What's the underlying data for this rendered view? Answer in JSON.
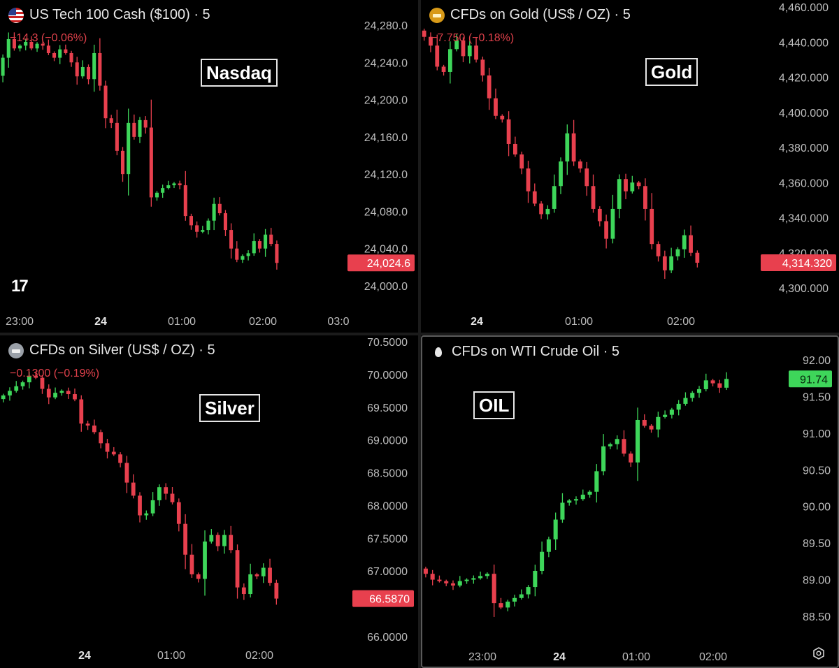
{
  "panels": {
    "nasdaq": {
      "title": "US Tech 100 Cash ($100) · 5",
      "change": "−14.3 (−0.06%)",
      "label": "Nasdaq",
      "icon": "us-flag-icon",
      "price_tag": "24,024.6",
      "yticks": [
        "24,280.0",
        "24,240.0",
        "24,200.0",
        "24,160.0",
        "24,120.0",
        "24,080.0",
        "24,040.0",
        "24,000.0"
      ],
      "xticks": [
        "23:00",
        "24",
        "01:00",
        "02:00",
        "03:0"
      ]
    },
    "gold": {
      "title": "CFDs on Gold (US$ / OZ) · 5",
      "change": "−7.750 (−0.18%)",
      "label": "Gold",
      "icon": "gold-bar-icon",
      "price_tag": "4,314.320",
      "yticks": [
        "4,460.000",
        "4,440.000",
        "4,420.000",
        "4,400.000",
        "4,380.000",
        "4,360.000",
        "4,340.000",
        "4,320.000",
        "4,300.000"
      ],
      "xticks": [
        "24",
        "01:00",
        "02:00"
      ]
    },
    "silver": {
      "title": "CFDs on Silver (US$ / OZ) · 5",
      "change": "−0.1300 (−0.19%)",
      "label": "Silver",
      "icon": "silver-bar-icon",
      "price_tag": "66.5870",
      "yticks": [
        "70.5000",
        "70.0000",
        "69.5000",
        "69.0000",
        "68.5000",
        "68.0000",
        "67.5000",
        "67.0000",
        "66.0000"
      ],
      "xticks": [
        "24",
        "01:00",
        "02:00"
      ]
    },
    "oil": {
      "title": "CFDs on WTI Crude Oil · 5",
      "label": "OIL",
      "icon": "oil-drop-icon",
      "price_tag": "91.74",
      "yticks": [
        "92.00",
        "91.50",
        "91.00",
        "90.50",
        "90.00",
        "89.50",
        "89.00",
        "88.50"
      ],
      "xticks": [
        "23:00",
        "24",
        "01:00",
        "02:00"
      ]
    }
  },
  "colors": {
    "up": "#3ed65a",
    "down": "#e8404e",
    "axis_text": "#bdbdbd",
    "background": "#000000"
  },
  "chart_data": [
    {
      "type": "candlestick",
      "title": "US Tech 100 Cash ($100) · 5",
      "ylim": [
        23990,
        24300
      ],
      "series": [
        {
          "name": "US Tech 100 Cash ($100)",
          "close": [
            24245,
            24265,
            24255,
            24258,
            24262,
            24255,
            24260,
            24258,
            24250,
            24245,
            24254,
            24250,
            24240,
            24225,
            24235,
            24222,
            24250,
            24215,
            24180,
            24175,
            24145,
            24120,
            24175,
            24160,
            24178,
            24170,
            24095,
            24100,
            24105,
            24108,
            24110,
            24108,
            24075,
            24065,
            24058,
            24060,
            24070,
            24088,
            24078,
            24060,
            24040,
            24028,
            24032,
            24035,
            24048,
            24040,
            24055,
            24045,
            24024.6
          ]
        }
      ]
    },
    {
      "type": "candlestick",
      "title": "CFDs on Gold (US$ / OZ) · 5",
      "ylim": [
        4295,
        4465
      ],
      "series": [
        {
          "name": "CFDs on Gold (US$ / OZ)",
          "close": [
            4443,
            4438,
            4426,
            4423,
            4436,
            4441,
            4432,
            4438,
            4430,
            4421,
            4408,
            4398,
            4396,
            4382,
            4376,
            4368,
            4355,
            4348,
            4342,
            4345,
            4358,
            4372,
            4388,
            4372,
            4368,
            4358,
            4345,
            4338,
            4328,
            4345,
            4362,
            4355,
            4360,
            4358,
            4345,
            4325,
            4318,
            4310,
            4318,
            4322,
            4330,
            4320,
            4314.32
          ]
        }
      ]
    },
    {
      "type": "candlestick",
      "title": "CFDs on Silver (US$ / OZ) · 5",
      "ylim": [
        65.9,
        70.6
      ],
      "series": [
        {
          "name": "CFDs on Silver (US$ / OZ)",
          "close": [
            69.68,
            69.75,
            69.82,
            69.88,
            69.98,
            69.95,
            69.78,
            69.65,
            69.72,
            69.75,
            69.7,
            69.62,
            69.25,
            69.22,
            69.12,
            68.95,
            68.82,
            68.78,
            68.65,
            68.35,
            68.15,
            67.85,
            67.88,
            68.08,
            68.28,
            68.18,
            68.05,
            67.72,
            67.25,
            66.95,
            66.88,
            67.45,
            67.55,
            67.38,
            67.55,
            67.32,
            66.75,
            66.65,
            66.95,
            66.92,
            67.05,
            66.82,
            66.58
          ]
        }
      ]
    },
    {
      "type": "candlestick",
      "title": "CFDs on WTI Crude Oil · 5",
      "ylim": [
        88.2,
        92.3
      ],
      "series": [
        {
          "name": "CFDs on WTI Crude Oil",
          "close": [
            89.08,
            89.0,
            88.98,
            88.95,
            88.92,
            88.98,
            89.0,
            89.02,
            89.05,
            89.08,
            88.68,
            88.62,
            88.7,
            88.75,
            88.8,
            88.9,
            89.12,
            89.38,
            89.55,
            89.82,
            90.05,
            90.08,
            90.1,
            90.16,
            90.2,
            90.48,
            90.82,
            90.85,
            90.92,
            90.72,
            90.6,
            91.18,
            91.1,
            91.05,
            91.22,
            91.25,
            91.32,
            91.4,
            91.48,
            91.55,
            91.6,
            91.72,
            91.68,
            91.62,
            91.74
          ]
        }
      ]
    }
  ]
}
